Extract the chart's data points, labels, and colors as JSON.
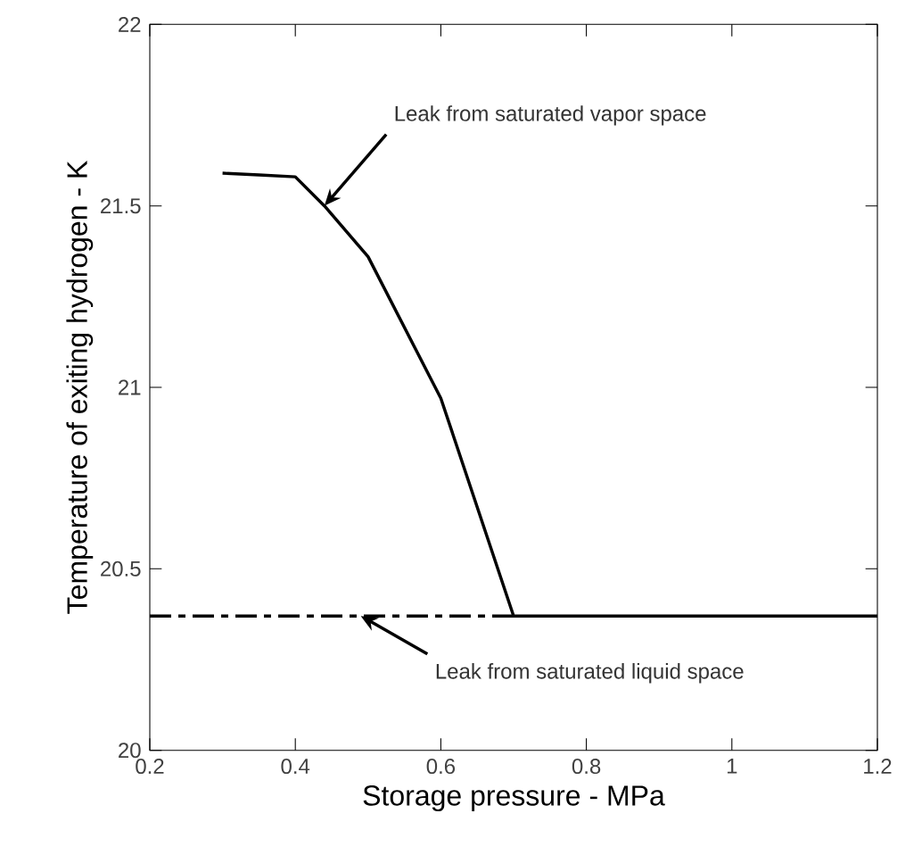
{
  "chart_data": {
    "type": "line",
    "xlabel": "Storage pressure - MPa",
    "ylabel": "Temperature of exiting hydrogen - K",
    "xlim": [
      0.2,
      1.2
    ],
    "xticks": [
      0.2,
      0.4,
      0.6,
      0.8,
      1,
      1.2
    ],
    "ylim": [
      20,
      22
    ],
    "yticks": [
      20,
      20.5,
      21,
      21.5,
      22
    ],
    "series": [
      {
        "color": "#000000",
        "line_style": "solid",
        "x": [
          0.3,
          0.35,
          0.4,
          0.44,
          0.5,
          0.6,
          0.7,
          1.2
        ],
        "values": [
          21.59,
          21.585,
          21.58,
          21.5,
          21.36,
          20.97,
          20.37,
          20.37
        ]
      },
      {
        "color": "#000000",
        "line_style": "dashed",
        "x": [
          0.2,
          0.7
        ],
        "values": [
          20.37,
          20.37
        ]
      }
    ],
    "annotations": [
      {
        "text": "Leak from saturated vapor space",
        "x": 0.44,
        "y": 21.5
      },
      {
        "text": "Leak from saturated liquid space",
        "x": 0.49,
        "y": 20.37
      }
    ]
  }
}
